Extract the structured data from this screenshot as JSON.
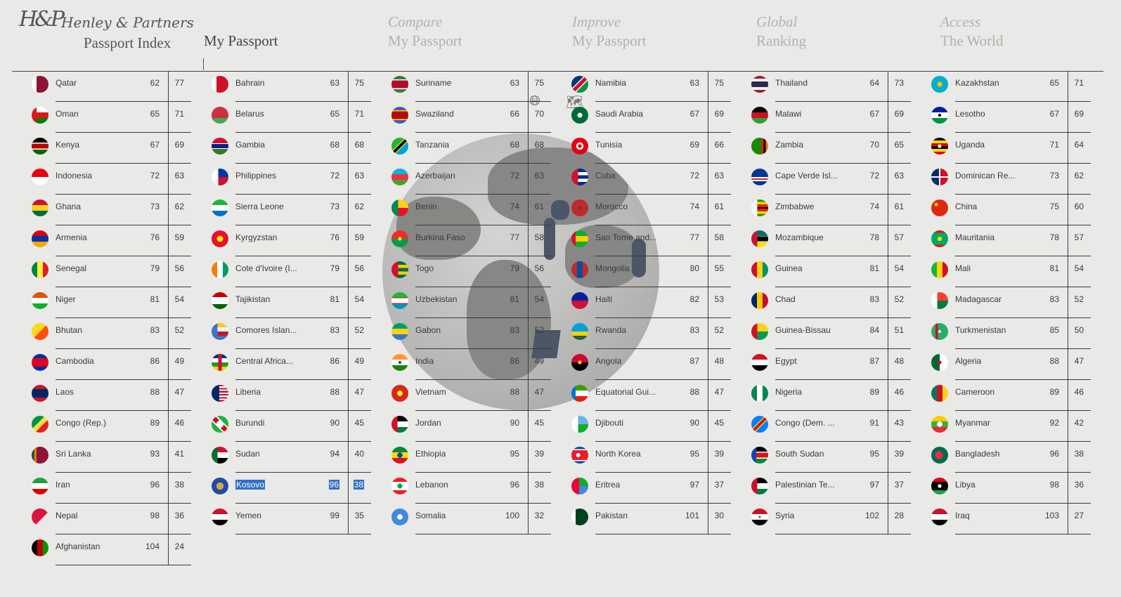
{
  "logo": {
    "monogram": "H&P",
    "brand": "Henley & Partners",
    "subtitle": "Passport Index"
  },
  "nav": [
    {
      "line1": "",
      "line2": "My Passport",
      "active": true
    },
    {
      "line1": "Compare",
      "line2": "My Passport"
    },
    {
      "line1": "Improve",
      "line2": "My Passport"
    },
    {
      "line1": "Global",
      "line2": "Ranking"
    },
    {
      "line1": "Access",
      "line2": "The World"
    }
  ],
  "globe_icons": {
    "globe": "globe-icon",
    "map": "map-icon"
  },
  "columns": [
    {
      "rows": [
        {
          "name": "Qatar",
          "rank": "62",
          "score": "77",
          "flag": "qatar"
        },
        {
          "name": "Oman",
          "rank": "65",
          "score": "71",
          "flag": "oman"
        },
        {
          "name": "Kenya",
          "rank": "67",
          "score": "69",
          "flag": "kenya"
        },
        {
          "name": "Indonesia",
          "rank": "72",
          "score": "63",
          "flag": "indonesia"
        },
        {
          "name": "Ghana",
          "rank": "73",
          "score": "62",
          "flag": "ghana"
        },
        {
          "name": "Armenia",
          "rank": "76",
          "score": "59",
          "flag": "armenia"
        },
        {
          "name": "Senegal",
          "rank": "79",
          "score": "56",
          "flag": "senegal"
        },
        {
          "name": "Niger",
          "rank": "81",
          "score": "54",
          "flag": "niger"
        },
        {
          "name": "Bhutan",
          "rank": "83",
          "score": "52",
          "flag": "bhutan"
        },
        {
          "name": "Cambodia",
          "rank": "86",
          "score": "49",
          "flag": "cambodia"
        },
        {
          "name": "Laos",
          "rank": "88",
          "score": "47",
          "flag": "laos"
        },
        {
          "name": "Congo (Rep.)",
          "rank": "89",
          "score": "46",
          "flag": "congo"
        },
        {
          "name": "Sri Lanka",
          "rank": "93",
          "score": "41",
          "flag": "srilanka"
        },
        {
          "name": "Iran",
          "rank": "96",
          "score": "38",
          "flag": "iran"
        },
        {
          "name": "Nepal",
          "rank": "98",
          "score": "36",
          "flag": "nepal"
        },
        {
          "name": "Afghanistan",
          "rank": "104",
          "score": "24",
          "flag": "afghanistan"
        }
      ]
    },
    {
      "rows": [
        {
          "name": "Bahrain",
          "rank": "63",
          "score": "75",
          "flag": "bahrain"
        },
        {
          "name": "Belarus",
          "rank": "65",
          "score": "71",
          "flag": "belarus"
        },
        {
          "name": "Gambia",
          "rank": "68",
          "score": "68",
          "flag": "gambia"
        },
        {
          "name": "Philippines",
          "rank": "72",
          "score": "63",
          "flag": "philippines"
        },
        {
          "name": "Sierra Leone",
          "rank": "73",
          "score": "62",
          "flag": "sierraleone"
        },
        {
          "name": "Kyrgyzstan",
          "rank": "76",
          "score": "59",
          "flag": "kyrgyzstan"
        },
        {
          "name": "Cote d'Ivoire (I...",
          "rank": "79",
          "score": "56",
          "flag": "ivorycoast"
        },
        {
          "name": "Tajikistan",
          "rank": "81",
          "score": "54",
          "flag": "tajikistan"
        },
        {
          "name": "Comores Islan...",
          "rank": "83",
          "score": "52",
          "flag": "comoros"
        },
        {
          "name": "Central Africa...",
          "rank": "86",
          "score": "49",
          "flag": "car"
        },
        {
          "name": "Liberia",
          "rank": "88",
          "score": "47",
          "flag": "liberia"
        },
        {
          "name": "Burundi",
          "rank": "90",
          "score": "45",
          "flag": "burundi"
        },
        {
          "name": "Sudan",
          "rank": "94",
          "score": "40",
          "flag": "sudan"
        },
        {
          "name": "Kosovo",
          "rank": "96",
          "score": "38",
          "flag": "kosovo",
          "selected": true
        },
        {
          "name": "Yemen",
          "rank": "99",
          "score": "35",
          "flag": "yemen"
        }
      ]
    },
    {
      "rows": [
        {
          "name": "Suriname",
          "rank": "63",
          "score": "75",
          "flag": "suriname"
        },
        {
          "name": "Swaziland",
          "rank": "66",
          "score": "70",
          "flag": "swaziland"
        },
        {
          "name": "Tanzania",
          "rank": "68",
          "score": "68",
          "flag": "tanzania"
        },
        {
          "name": "Azerbaijan",
          "rank": "72",
          "score": "63",
          "flag": "azerbaijan"
        },
        {
          "name": "Benin",
          "rank": "74",
          "score": "61",
          "flag": "benin"
        },
        {
          "name": "Burkina Faso",
          "rank": "77",
          "score": "58",
          "flag": "burkina"
        },
        {
          "name": "Togo",
          "rank": "79",
          "score": "56",
          "flag": "togo"
        },
        {
          "name": "Uzbekistan",
          "rank": "81",
          "score": "54",
          "flag": "uzbekistan"
        },
        {
          "name": "Gabon",
          "rank": "83",
          "score": "52",
          "flag": "gabon"
        },
        {
          "name": "India",
          "rank": "86",
          "score": "49",
          "flag": "india"
        },
        {
          "name": "Vietnam",
          "rank": "88",
          "score": "47",
          "flag": "vietnam"
        },
        {
          "name": "Jordan",
          "rank": "90",
          "score": "45",
          "flag": "jordan"
        },
        {
          "name": "Ethiopia",
          "rank": "95",
          "score": "39",
          "flag": "ethiopia"
        },
        {
          "name": "Lebanon",
          "rank": "96",
          "score": "38",
          "flag": "lebanon"
        },
        {
          "name": "Somalia",
          "rank": "100",
          "score": "32",
          "flag": "somalia"
        }
      ]
    },
    {
      "rows": [
        {
          "name": "Namibia",
          "rank": "63",
          "score": "75",
          "flag": "namibia"
        },
        {
          "name": "Saudi Arabia",
          "rank": "67",
          "score": "69",
          "flag": "saudi"
        },
        {
          "name": "Tunisia",
          "rank": "69",
          "score": "66",
          "flag": "tunisia"
        },
        {
          "name": "Cuba",
          "rank": "72",
          "score": "63",
          "flag": "cuba"
        },
        {
          "name": "Morocco",
          "rank": "74",
          "score": "61",
          "flag": "morocco"
        },
        {
          "name": "Sao Tome and...",
          "rank": "77",
          "score": "58",
          "flag": "saotome"
        },
        {
          "name": "Mongolia",
          "rank": "80",
          "score": "55",
          "flag": "mongolia"
        },
        {
          "name": "Haiti",
          "rank": "82",
          "score": "53",
          "flag": "haiti"
        },
        {
          "name": "Rwanda",
          "rank": "83",
          "score": "52",
          "flag": "rwanda"
        },
        {
          "name": "Angola",
          "rank": "87",
          "score": "48",
          "flag": "angola"
        },
        {
          "name": "Equatorial Gui...",
          "rank": "88",
          "score": "47",
          "flag": "eqguinea"
        },
        {
          "name": "Djibouti",
          "rank": "90",
          "score": "45",
          "flag": "djibouti"
        },
        {
          "name": "North Korea",
          "rank": "95",
          "score": "39",
          "flag": "nkorea"
        },
        {
          "name": "Eritrea",
          "rank": "97",
          "score": "37",
          "flag": "eritrea"
        },
        {
          "name": "Pakistan",
          "rank": "101",
          "score": "30",
          "flag": "pakistan"
        }
      ]
    },
    {
      "rows": [
        {
          "name": "Thailand",
          "rank": "64",
          "score": "73",
          "flag": "thailand"
        },
        {
          "name": "Malawi",
          "rank": "67",
          "score": "69",
          "flag": "malawi"
        },
        {
          "name": "Zambia",
          "rank": "70",
          "score": "65",
          "flag": "zambia"
        },
        {
          "name": "Cape Verde Isl...",
          "rank": "72",
          "score": "63",
          "flag": "capeverde"
        },
        {
          "name": "Zimbabwe",
          "rank": "74",
          "score": "61",
          "flag": "zimbabwe"
        },
        {
          "name": "Mozambique",
          "rank": "78",
          "score": "57",
          "flag": "mozambique"
        },
        {
          "name": "Guinea",
          "rank": "81",
          "score": "54",
          "flag": "guinea"
        },
        {
          "name": "Chad",
          "rank": "83",
          "score": "52",
          "flag": "chad"
        },
        {
          "name": "Guinea-Bissau",
          "rank": "84",
          "score": "51",
          "flag": "guineabissau"
        },
        {
          "name": "Egypt",
          "rank": "87",
          "score": "48",
          "flag": "egypt"
        },
        {
          "name": "Nigeria",
          "rank": "89",
          "score": "46",
          "flag": "nigeria"
        },
        {
          "name": "Congo (Dem. ...",
          "rank": "91",
          "score": "43",
          "flag": "drc"
        },
        {
          "name": "South Sudan",
          "rank": "95",
          "score": "39",
          "flag": "southsudan"
        },
        {
          "name": "Palestinian Te...",
          "rank": "97",
          "score": "37",
          "flag": "palestine"
        },
        {
          "name": "Syria",
          "rank": "102",
          "score": "28",
          "flag": "syria"
        }
      ]
    },
    {
      "rows": [
        {
          "name": "Kazakhstan",
          "rank": "65",
          "score": "71",
          "flag": "kazakhstan"
        },
        {
          "name": "Lesotho",
          "rank": "67",
          "score": "69",
          "flag": "lesotho"
        },
        {
          "name": "Uganda",
          "rank": "71",
          "score": "64",
          "flag": "uganda"
        },
        {
          "name": "Dominican Re...",
          "rank": "73",
          "score": "62",
          "flag": "dominican"
        },
        {
          "name": "China",
          "rank": "75",
          "score": "60",
          "flag": "china"
        },
        {
          "name": "Mauritania",
          "rank": "78",
          "score": "57",
          "flag": "mauritania"
        },
        {
          "name": "Mali",
          "rank": "81",
          "score": "54",
          "flag": "mali"
        },
        {
          "name": "Madagascar",
          "rank": "83",
          "score": "52",
          "flag": "madagascar"
        },
        {
          "name": "Turkmenistan",
          "rank": "85",
          "score": "50",
          "flag": "turkmenistan"
        },
        {
          "name": "Algeria",
          "rank": "88",
          "score": "47",
          "flag": "algeria"
        },
        {
          "name": "Cameroon",
          "rank": "89",
          "score": "46",
          "flag": "cameroon"
        },
        {
          "name": "Myanmar",
          "rank": "92",
          "score": "42",
          "flag": "myanmar"
        },
        {
          "name": "Bangladesh",
          "rank": "96",
          "score": "38",
          "flag": "bangladesh"
        },
        {
          "name": "Libya",
          "rank": "98",
          "score": "36",
          "flag": "libya"
        },
        {
          "name": "Iraq",
          "rank": "103",
          "score": "27",
          "flag": "iraq"
        }
      ]
    }
  ]
}
